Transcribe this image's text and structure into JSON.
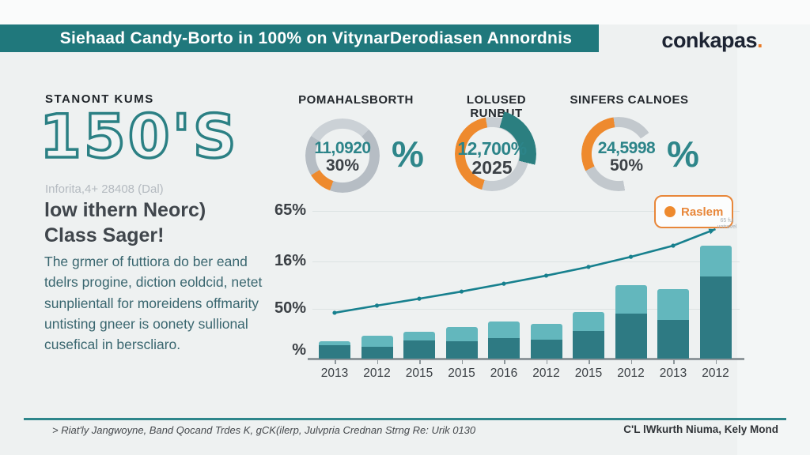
{
  "header": {
    "title": "Siehaad Candy-Borto in 100% on VitynarDerodiasen Annordnis"
  },
  "logo": {
    "text": "conkapas",
    "dot": ".",
    "accent_color": "#e97b28"
  },
  "left_panel": {
    "kicker": "STANONT KUMS",
    "big_number": "150'S",
    "subtext_light": "Inforita,4+ 28408 (Dal)",
    "headline_line1": "low ithern Neorc)",
    "headline_line2": "Class Sager!",
    "paragraph": "The grmer of futtiora do ber eand tdelrs progine, diction eoldcid, netet sunplientall for moreidens offmarity untisting gneer is oonety sullional cusefical in berscliaro."
  },
  "chart_data": [
    {
      "type": "donut",
      "title": "POMAHALSBORTH",
      "center_value": "11,0920",
      "center_label": "30%",
      "outside_symbol": "%",
      "segments": [
        {
          "name": "orange",
          "color": "#ee8a2e",
          "value": 10
        },
        {
          "name": "gray",
          "color": "#b6bdc4",
          "value": 90
        }
      ]
    },
    {
      "type": "donut",
      "title": "LOLUSED RUNBUT",
      "center_value": "12,700%",
      "center_label": "2025",
      "outside_symbol": "",
      "segments": [
        {
          "name": "orange",
          "color": "#ee8a2e",
          "value": 43
        },
        {
          "name": "gray",
          "color": "#c7cdd2",
          "value": 57
        },
        {
          "name": "teal-accent-arc",
          "color": "#2b7f80",
          "value": 25
        }
      ]
    },
    {
      "type": "donut",
      "title": "SINFERS CALNOES",
      "center_value": "24,5998",
      "center_label": "50%",
      "outside_symbol": "%",
      "segments": [
        {
          "name": "orange",
          "color": "#ee8a2e",
          "value": 30
        },
        {
          "name": "gray",
          "color": "#c2c8cd",
          "value": 38
        },
        {
          "name": "gap",
          "color": "none",
          "value": 32
        }
      ]
    },
    {
      "type": "bar",
      "subtype": "stacked-bars-with-trend-line",
      "categories": [
        "2013",
        "2012",
        "2015",
        "2015",
        "2016",
        "2012",
        "2015",
        "2012",
        "2013",
        "2012"
      ],
      "series": [
        {
          "name": "bar-dark",
          "color": "#2e7a83",
          "values": [
            6.0,
            5.3,
            8.1,
            7.8,
            9.2,
            8.5,
            12.4,
            20.1,
            17.3,
            36.7
          ]
        },
        {
          "name": "bar-light",
          "color": "#63b7bd",
          "values": [
            1.8,
            4.9,
            3.9,
            6.3,
            7.4,
            7.0,
            8.4,
            12.7,
            13.8,
            13.8
          ]
        },
        {
          "name": "Raslem",
          "type": "line",
          "color": "#17808e",
          "values": [
            20.5,
            23.7,
            26.8,
            30.0,
            33.5,
            37.1,
            41.0,
            45.5,
            50.5,
            57.9
          ]
        }
      ],
      "yticks": [
        "65%",
        "16%",
        "50%",
        "%"
      ],
      "ylim": [
        0,
        69
      ],
      "grid": true,
      "legend": {
        "label": "Raslem",
        "position": "top-right"
      }
    }
  ],
  "annotation": {
    "line1": "65 ful",
    "line2": "untravel"
  },
  "footer": {
    "left": "> Riat'ly Jangwoyne, Band Qocand Trdes K, gCK(ilerp, Julvpria Crednan Strng Re: Urik 0130",
    "right": "C'L lWkurth Niuma, Kely Mond"
  },
  "colors": {
    "header_teal": "#20787c",
    "orange": "#ee8a2e",
    "bar_dark": "#2e7a83",
    "bar_light": "#63b7bd",
    "line_teal": "#17808e"
  }
}
